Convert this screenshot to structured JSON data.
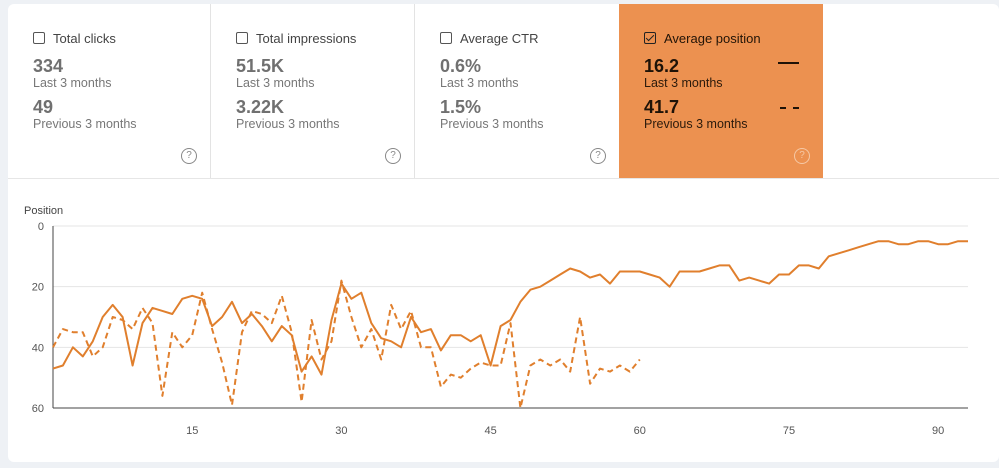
{
  "cards": [
    {
      "label": "Total clicks",
      "checked": false,
      "current_value": "334",
      "current_period": "Last 3 months",
      "previous_value": "49",
      "previous_period": "Previous 3 months",
      "help": "?"
    },
    {
      "label": "Total impressions",
      "checked": false,
      "current_value": "51.5K",
      "current_period": "Last 3 months",
      "previous_value": "3.22K",
      "previous_period": "Previous 3 months",
      "help": "?"
    },
    {
      "label": "Average CTR",
      "checked": false,
      "current_value": "0.6%",
      "current_period": "Last 3 months",
      "previous_value": "1.5%",
      "previous_period": "Previous 3 months",
      "help": "?"
    },
    {
      "label": "Average position",
      "checked": true,
      "current_value": "16.2",
      "current_period": "Last 3 months",
      "previous_value": "41.7",
      "previous_period": "Previous 3 months",
      "help": "?"
    }
  ],
  "colors": {
    "accent": "#ec9150",
    "line": "#e07f2d"
  },
  "chart_data": {
    "type": "line",
    "ylabel": "Position",
    "y_reversed": true,
    "ylim": [
      0,
      60
    ],
    "xlim": [
      1,
      93
    ],
    "y_ticks": [
      0,
      20,
      40,
      60
    ],
    "x_ticks": [
      15,
      30,
      45,
      60,
      75,
      90
    ],
    "grid": true,
    "series": [
      {
        "style": "solid",
        "x": [
          1,
          2,
          3,
          4,
          5,
          6,
          7,
          8,
          9,
          10,
          11,
          12,
          13,
          14,
          15,
          16,
          17,
          18,
          19,
          20,
          21,
          22,
          23,
          24,
          25,
          26,
          27,
          28,
          29,
          30,
          31,
          32,
          33,
          34,
          35,
          36,
          37,
          38,
          39,
          40,
          41,
          42,
          43,
          44,
          45,
          46,
          47,
          48,
          49,
          50,
          51,
          52,
          53,
          54,
          55,
          56,
          57,
          58,
          59,
          60,
          61,
          62,
          63,
          64,
          65,
          66,
          67,
          68,
          69,
          70,
          71,
          72,
          73,
          74,
          75,
          76,
          77,
          78,
          79,
          80,
          81,
          82,
          83,
          84,
          85,
          86,
          87,
          88,
          89,
          90,
          91,
          92,
          93
        ],
        "y": [
          47,
          46,
          40,
          43,
          38,
          30,
          26,
          30,
          46,
          32,
          27,
          28,
          29,
          24,
          23,
          24,
          33,
          30,
          25,
          32,
          29,
          33,
          38,
          33,
          36,
          48,
          43,
          49,
          31,
          19,
          24,
          22,
          32,
          37,
          38,
          40,
          30,
          35,
          34,
          41,
          36,
          36,
          38,
          36,
          46,
          33,
          31,
          25,
          21,
          20,
          18,
          16,
          14,
          15,
          17,
          16,
          19,
          15,
          15,
          15,
          16,
          17,
          20,
          15,
          15,
          15,
          14,
          13,
          13,
          18,
          17,
          18,
          19,
          16,
          16,
          13,
          13,
          14,
          10,
          9,
          8,
          7,
          6,
          5,
          5,
          6,
          6,
          5,
          5,
          6,
          6,
          5,
          5
        ]
      },
      {
        "style": "dashed",
        "x": [
          1,
          2,
          3,
          4,
          5,
          6,
          7,
          8,
          9,
          10,
          11,
          12,
          13,
          14,
          15,
          16,
          17,
          18,
          19,
          20,
          21,
          22,
          23,
          24,
          25,
          26,
          27,
          28,
          29,
          30,
          31,
          32,
          33,
          34,
          35,
          36,
          37,
          38,
          39,
          40,
          41,
          42,
          43,
          44,
          45,
          46,
          47,
          48,
          49,
          50,
          51,
          52,
          53,
          54,
          55,
          56,
          57,
          58,
          59,
          60
        ],
        "y": [
          40,
          34,
          35,
          35,
          43,
          40,
          30,
          31,
          34,
          27,
          32,
          56,
          35,
          40,
          36,
          22,
          34,
          45,
          59,
          35,
          28,
          29,
          32,
          23,
          35,
          58,
          31,
          44,
          38,
          18,
          30,
          40,
          34,
          44,
          26,
          34,
          28,
          40,
          40,
          53,
          49,
          50,
          47,
          45,
          46,
          46,
          32,
          60,
          46,
          44,
          46,
          44,
          48,
          30,
          52,
          47,
          48,
          46,
          48,
          44
        ]
      }
    ]
  }
}
